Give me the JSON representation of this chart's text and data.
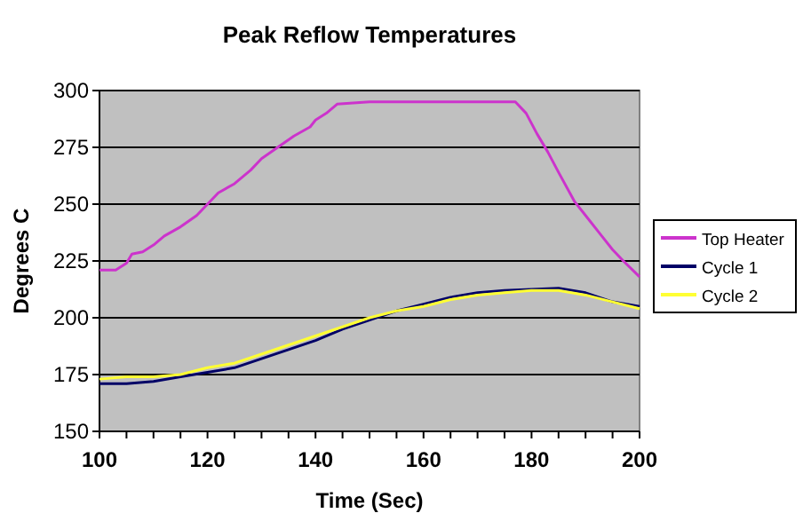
{
  "chart_data": {
    "type": "line",
    "title": "Peak Reflow Temperatures",
    "xlabel": "Time (Sec)",
    "ylabel": "Degrees C",
    "xlim": [
      100,
      200
    ],
    "ylim": [
      150,
      300
    ],
    "xticks": [
      100,
      {
        "value": 105,
        "label": null
      },
      {
        "value": 110,
        "label": null
      },
      {
        "value": 115,
        "label": null
      },
      120,
      {
        "value": 125,
        "label": null
      },
      {
        "value": 130,
        "label": null
      },
      {
        "value": 135,
        "label": null
      },
      140,
      {
        "value": 145,
        "label": null
      },
      {
        "value": 150,
        "label": null
      },
      {
        "value": 155,
        "label": null
      },
      160,
      {
        "value": 165,
        "label": null
      },
      {
        "value": 170,
        "label": null
      },
      {
        "value": 175,
        "label": null
      },
      180,
      {
        "value": 185,
        "label": null
      },
      {
        "value": 190,
        "label": null
      },
      {
        "value": 195,
        "label": null
      },
      200
    ],
    "yticks": [
      150,
      175,
      200,
      225,
      250,
      275,
      300
    ],
    "grid": "y",
    "legend": "right",
    "marker": "none",
    "line_style": "solid",
    "series": [
      {
        "name": "Top Heater",
        "color": "#cc33cc",
        "x": [
          100,
          103,
          105,
          106,
          108,
          110,
          112,
          115,
          118,
          120,
          122,
          125,
          128,
          130,
          133,
          136,
          139,
          140,
          142,
          144,
          150,
          155,
          160,
          170,
          177,
          179,
          181,
          183,
          185,
          188,
          190,
          193,
          195,
          197,
          200
        ],
        "values": [
          221,
          221,
          224,
          228,
          229,
          232,
          236,
          240,
          245,
          250,
          255,
          259,
          265,
          270,
          275,
          280,
          284,
          287,
          290,
          294,
          295,
          295,
          295,
          295,
          295,
          290,
          281,
          273,
          264,
          251,
          245,
          236,
          230,
          225,
          218
        ]
      },
      {
        "name": "Cycle 1",
        "color": "#000066",
        "x": [
          100,
          105,
          110,
          115,
          120,
          125,
          130,
          135,
          140,
          145,
          150,
          155,
          160,
          165,
          170,
          175,
          180,
          185,
          190,
          195,
          200
        ],
        "values": [
          171,
          171,
          172,
          174,
          176,
          178,
          182,
          186,
          190,
          195,
          199,
          203,
          206,
          209,
          211,
          212,
          212.5,
          213,
          211,
          207,
          205
        ]
      },
      {
        "name": "Cycle 2",
        "color": "#ffff33",
        "x": [
          100,
          105,
          110,
          115,
          120,
          125,
          130,
          135,
          140,
          145,
          150,
          155,
          160,
          165,
          170,
          175,
          180,
          185,
          190,
          195,
          200
        ],
        "values": [
          173,
          174,
          174,
          175,
          178,
          180,
          184,
          188,
          192,
          196,
          200,
          203,
          205,
          208,
          210,
          211,
          212,
          212,
          210,
          207,
          204
        ]
      }
    ]
  }
}
